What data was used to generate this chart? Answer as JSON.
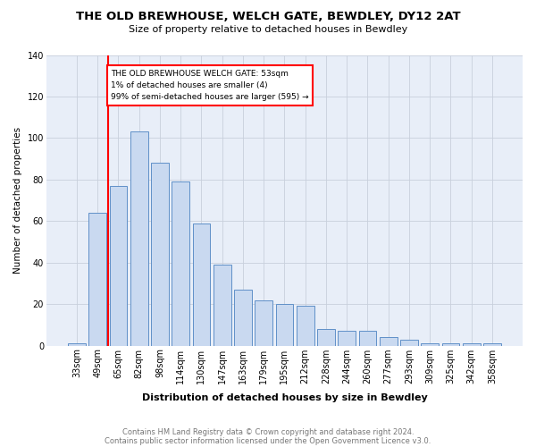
{
  "title1": "THE OLD BREWHOUSE, WELCH GATE, BEWDLEY, DY12 2AT",
  "title2": "Size of property relative to detached houses in Bewdley",
  "xlabel": "Distribution of detached houses by size in Bewdley",
  "ylabel": "Number of detached properties",
  "footnote1": "Contains HM Land Registry data © Crown copyright and database right 2024.",
  "footnote2": "Contains public sector information licensed under the Open Government Licence v3.0.",
  "bin_labels": [
    "33sqm",
    "49sqm",
    "65sqm",
    "82sqm",
    "98sqm",
    "114sqm",
    "130sqm",
    "147sqm",
    "163sqm",
    "179sqm",
    "195sqm",
    "212sqm",
    "228sqm",
    "244sqm",
    "260sqm",
    "277sqm",
    "293sqm",
    "309sqm",
    "325sqm",
    "342sqm",
    "358sqm"
  ],
  "bar_values": [
    1,
    64,
    77,
    103,
    88,
    79,
    59,
    39,
    27,
    22,
    20,
    19,
    8,
    7,
    7,
    4,
    3,
    1,
    1,
    1,
    1
  ],
  "bar_color": "#c9d9f0",
  "bar_edge_color": "#6090c8",
  "vline_x": 1.5,
  "vline_color": "red",
  "annotation_text": "THE OLD BREWHOUSE WELCH GATE: 53sqm\n1% of detached houses are smaller (4)\n99% of semi-detached houses are larger (595) →",
  "annotation_box_color": "white",
  "annotation_box_edge": "red",
  "ylim": [
    0,
    140
  ],
  "yticks": [
    0,
    20,
    40,
    60,
    80,
    100,
    120,
    140
  ],
  "grid_color": "#c8d0dc",
  "bg_color": "#e8eef8",
  "title1_fontsize": 9.5,
  "title2_fontsize": 8,
  "xlabel_fontsize": 8,
  "ylabel_fontsize": 7.5,
  "tick_fontsize": 7,
  "annot_fontsize": 6.5,
  "footnote_fontsize": 6
}
